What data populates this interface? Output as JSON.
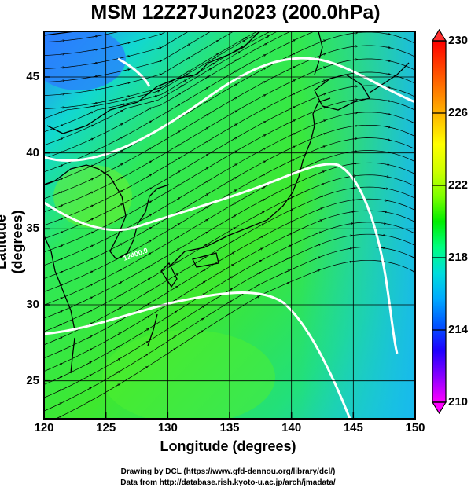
{
  "title": "MSM 12Z27Jun2023 (200.0hPa)",
  "map": {
    "xlabel": "Longitude (degrees)",
    "ylabel": "Latitude  (degrees)",
    "lon_ticks": [
      "120",
      "125",
      "130",
      "135",
      "140",
      "145",
      "150"
    ],
    "lat_ticks": [
      "45",
      "40",
      "35",
      "30",
      "25"
    ],
    "lon_range": [
      120,
      150
    ],
    "lat_range": [
      22.5,
      48
    ],
    "grid": true,
    "contour_label": "12400.0",
    "colors": {
      "frame": "#000000",
      "contour": "#ffffff",
      "streamline": "#000000",
      "coast": "#000000"
    }
  },
  "colorbar": {
    "ticks": [
      "230",
      "226",
      "222",
      "218",
      "214",
      "210"
    ],
    "range": [
      210,
      230
    ],
    "colors": [
      "#ff00ff",
      "#8a00ff",
      "#1e00ff",
      "#0055ff",
      "#00aaff",
      "#00dddd",
      "#00ff80",
      "#00ee00",
      "#80ff00",
      "#d0ff00",
      "#ffff00",
      "#ffc000",
      "#ff8000",
      "#ff4000",
      "#ff0000"
    ]
  },
  "credits": {
    "line1": "Drawing by DCL (https://www.gfd-dennou.org/library/dcl/)",
    "line2": "Data from http://database.rish.kyoto-u.ac.jp/arch/jmadata/"
  }
}
